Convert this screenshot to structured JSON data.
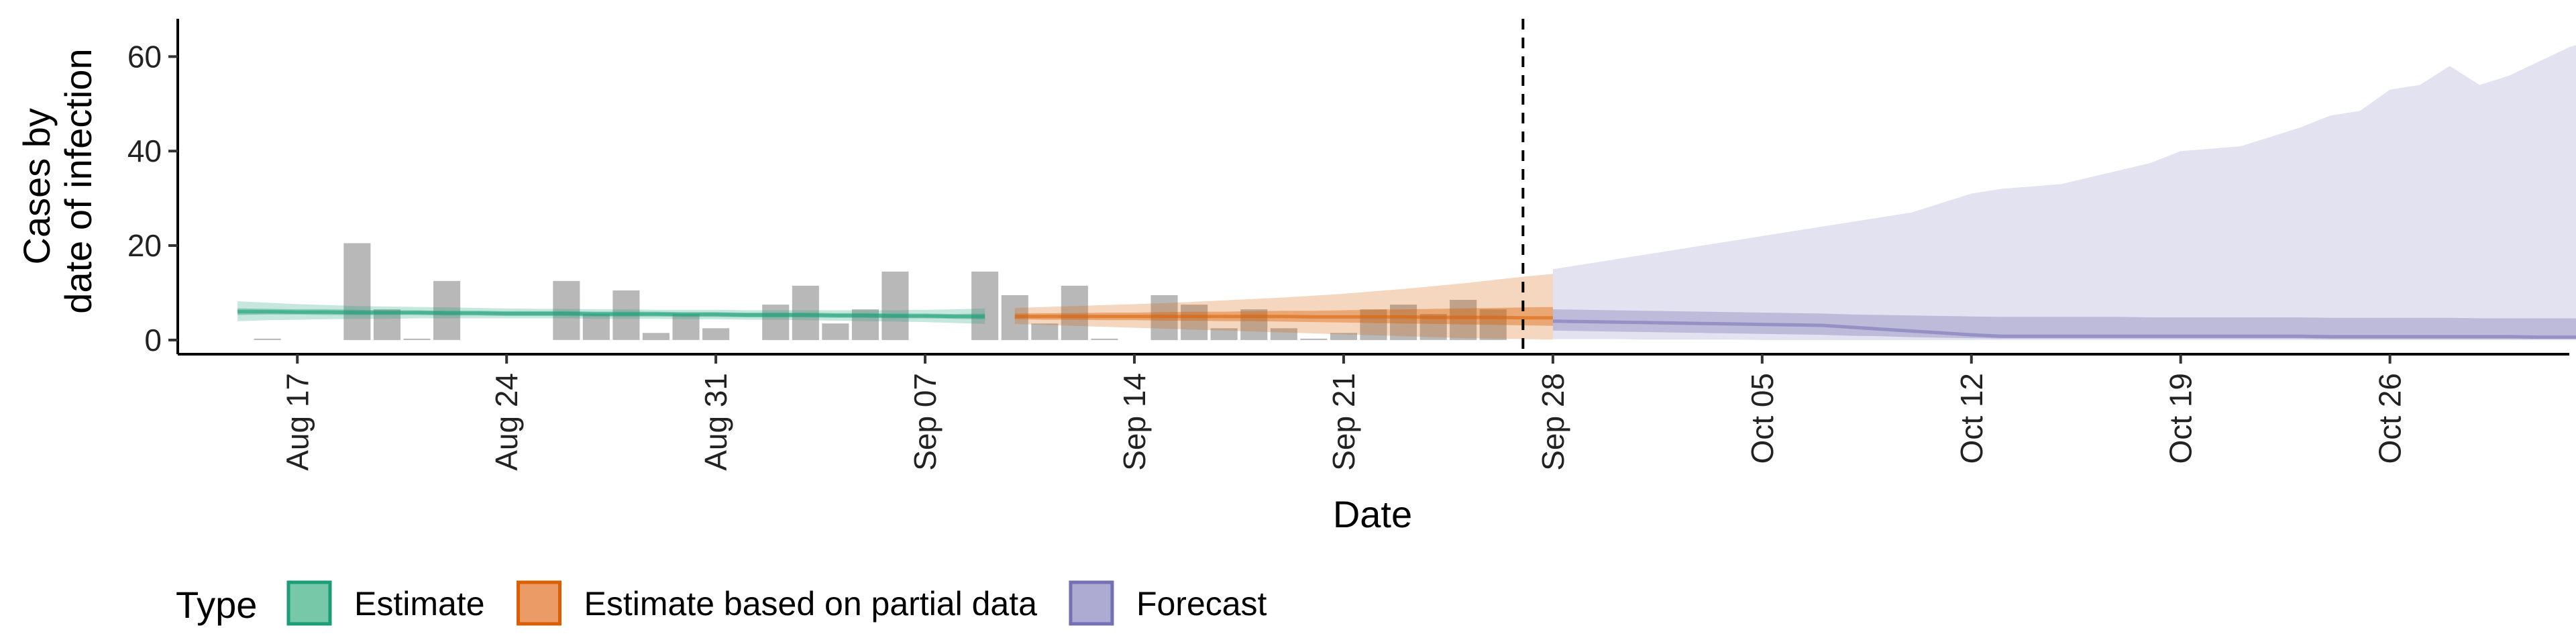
{
  "chart_data": {
    "type": "bar",
    "xlabel": "Date",
    "ylabel_lines": [
      "Cases by",
      "date of infection"
    ],
    "ylim": [
      -3,
      68
    ],
    "yticks": [
      0,
      20,
      40,
      60
    ],
    "x_range": [
      "2021-08-13",
      "2021-11-01"
    ],
    "xticks": [
      "2021-08-17",
      "2021-08-24",
      "2021-08-31",
      "2021-09-07",
      "2021-09-14",
      "2021-09-21",
      "2021-09-28",
      "2021-10-05",
      "2021-10-12",
      "2021-10-19",
      "2021-10-26"
    ],
    "xtick_labels": [
      "Aug 17",
      "Aug 24",
      "Aug 31",
      "Sep 07",
      "Sep 14",
      "Sep 21",
      "Sep 28",
      "Oct 05",
      "Oct 12",
      "Oct 19",
      "Oct 26"
    ],
    "forecast_divider_date": "2021-09-27",
    "grid": false,
    "legend_position": "bottom",
    "observed_cases": {
      "color": "#a0a0a0",
      "start_date": "2021-08-16",
      "values": [
        0.3,
        0,
        0,
        20.5,
        6.5,
        0.3,
        12.5,
        0,
        0,
        0,
        12.5,
        5.5,
        10.5,
        1.5,
        5.5,
        2.5,
        0,
        7.5,
        11.5,
        3.5,
        6.5,
        14.5,
        0,
        0,
        14.5,
        9.5,
        3.5,
        11.5,
        0.3,
        0,
        9.5,
        7.5,
        2.5,
        6.5,
        2.5,
        0.3,
        1.5,
        6.5,
        7.5,
        5.5,
        8.5,
        6.5
      ]
    },
    "series": [
      {
        "name": "Estimate",
        "color": "#1b9e77",
        "start_date": "2021-08-15",
        "median": [
          6.0,
          6.0,
          5.9,
          5.9,
          5.8,
          5.8,
          5.8,
          5.7,
          5.7,
          5.6,
          5.6,
          5.6,
          5.5,
          5.5,
          5.5,
          5.4,
          5.4,
          5.3,
          5.3,
          5.3,
          5.2,
          5.2,
          5.1,
          5.1,
          5.0,
          5.0
        ],
        "lower_90": [
          4.0,
          4.2,
          4.3,
          4.4,
          4.5,
          4.5,
          4.6,
          4.6,
          4.6,
          4.6,
          4.6,
          4.6,
          4.5,
          4.5,
          4.5,
          4.4,
          4.4,
          4.3,
          4.3,
          4.2,
          4.1,
          4.0,
          3.9,
          3.8,
          3.6,
          3.4
        ],
        "upper_90": [
          8.2,
          7.9,
          7.6,
          7.4,
          7.2,
          7.1,
          7.0,
          6.9,
          6.8,
          6.7,
          6.6,
          6.6,
          6.5,
          6.5,
          6.4,
          6.4,
          6.4,
          6.3,
          6.3,
          6.3,
          6.3,
          6.3,
          6.3,
          6.4,
          6.5,
          6.7
        ],
        "lower_50": [
          5.3,
          5.4,
          5.4,
          5.3,
          5.3,
          5.3,
          5.3,
          5.2,
          5.2,
          5.1,
          5.1,
          5.1,
          5.0,
          5.0,
          5.0,
          4.9,
          4.9,
          4.8,
          4.8,
          4.8,
          4.7,
          4.7,
          4.6,
          4.6,
          4.5,
          4.4
        ],
        "upper_50": [
          6.7,
          6.6,
          6.5,
          6.5,
          6.4,
          6.3,
          6.3,
          6.2,
          6.2,
          6.1,
          6.1,
          6.1,
          6.0,
          6.0,
          6.0,
          5.9,
          5.9,
          5.8,
          5.8,
          5.8,
          5.7,
          5.7,
          5.6,
          5.6,
          5.5,
          5.6
        ]
      },
      {
        "name": "Estimate based on partial data",
        "color": "#d95f02",
        "start_date": "2021-09-10",
        "median": [
          5.0,
          5.0,
          5.0,
          5.0,
          5.0,
          5.0,
          5.0,
          5.0,
          5.0,
          5.0,
          4.9,
          4.9,
          4.9,
          4.9,
          4.8,
          4.8,
          4.8,
          4.7,
          4.7
        ],
        "lower_90": [
          3.4,
          3.2,
          3.0,
          2.8,
          2.6,
          2.4,
          2.2,
          2.0,
          1.8,
          1.6,
          1.4,
          1.2,
          1.0,
          0.8,
          0.6,
          0.4,
          0.3,
          0.2,
          0.1
        ],
        "upper_90": [
          6.8,
          7.0,
          7.2,
          7.4,
          7.6,
          7.8,
          8.1,
          8.4,
          8.7,
          9.0,
          9.4,
          9.8,
          10.3,
          10.8,
          11.4,
          12.0,
          12.7,
          13.4,
          14.0
        ],
        "lower_50": [
          4.4,
          4.3,
          4.3,
          4.2,
          4.2,
          4.1,
          4.1,
          4.0,
          4.0,
          3.9,
          3.8,
          3.7,
          3.6,
          3.5,
          3.4,
          3.3,
          3.2,
          3.1,
          3.0
        ],
        "upper_50": [
          5.6,
          5.7,
          5.7,
          5.8,
          5.8,
          5.9,
          6.0,
          6.0,
          6.1,
          6.2,
          6.2,
          6.3,
          6.4,
          6.5,
          6.6,
          6.7,
          6.8,
          6.9,
          7.0
        ]
      },
      {
        "name": "Forecast",
        "color": "#7570b3",
        "start_date": "2021-09-28",
        "median": [
          4.0,
          3.9,
          3.8,
          3.7,
          3.6,
          3.5,
          3.4,
          3.3,
          3.2,
          3.1,
          2.7,
          2.3,
          1.9,
          1.5,
          1.1,
          0.8,
          0.8,
          0.8,
          0.8,
          0.8,
          0.8,
          0.8,
          0.8,
          0.8,
          0.8,
          0.8,
          0.7,
          0.7,
          0.7,
          0.7,
          0.7,
          0.7,
          0.7,
          0.6,
          0.6,
          0.6,
          0.6,
          0.6,
          0.6,
          0.6
        ],
        "lower_90": [
          0.2,
          0.2,
          0.2,
          0.1,
          0.1,
          0.1,
          0.1,
          0,
          0,
          0,
          0,
          0,
          0,
          0,
          0,
          0,
          0,
          0,
          0,
          0,
          0,
          0,
          0,
          0,
          0,
          0,
          0,
          0,
          0,
          0,
          0,
          0,
          0,
          0,
          0,
          0,
          0,
          0,
          0,
          0
        ],
        "upper_90": [
          15.0,
          16.0,
          17.0,
          18.0,
          19.0,
          20.0,
          21.0,
          22.0,
          23.0,
          24.0,
          25.0,
          26.0,
          27.0,
          29.0,
          31.0,
          32.0,
          32.5,
          33.0,
          34.5,
          36.0,
          37.5,
          40.0,
          40.5,
          41.0,
          43.0,
          45.0,
          47.5,
          48.5,
          53.0,
          54.0,
          58.0,
          54.0,
          56.0,
          59.0,
          62.0,
          64.0,
          65.0,
          65.0,
          65.0,
          65.0
        ],
        "lower_50": [
          2.0,
          1.9,
          1.8,
          1.7,
          1.6,
          1.5,
          1.4,
          1.3,
          1.2,
          1.1,
          0.9,
          0.8,
          0.6,
          0.5,
          0.4,
          0.3,
          0.3,
          0.3,
          0.3,
          0.3,
          0.3,
          0.3,
          0.3,
          0.3,
          0.3,
          0.3,
          0.2,
          0.2,
          0.2,
          0.2,
          0.2,
          0.2,
          0.2,
          0.2,
          0.2,
          0.2,
          0.2,
          0.2,
          0.2,
          0.2
        ],
        "upper_50": [
          6.5,
          6.4,
          6.3,
          6.2,
          6.1,
          6.0,
          5.9,
          5.8,
          5.7,
          5.6,
          5.4,
          5.3,
          5.2,
          5.1,
          5.0,
          4.9,
          4.9,
          4.9,
          4.9,
          4.9,
          4.8,
          4.8,
          4.8,
          4.8,
          4.8,
          4.8,
          4.7,
          4.7,
          4.7,
          4.7,
          4.7,
          4.6,
          4.6,
          4.6,
          4.6,
          4.5,
          4.5,
          4.5,
          4.5,
          4.5
        ]
      }
    ],
    "legend": {
      "title": "Type",
      "items": [
        {
          "label": "Estimate",
          "color": "#1b9e77",
          "fill": "#77c7a9"
        },
        {
          "label": "Estimate based on partial data",
          "color": "#d95f02",
          "fill": "#eb9c66"
        },
        {
          "label": "Forecast",
          "color": "#7570b3",
          "fill": "#aeabd3"
        }
      ]
    }
  }
}
